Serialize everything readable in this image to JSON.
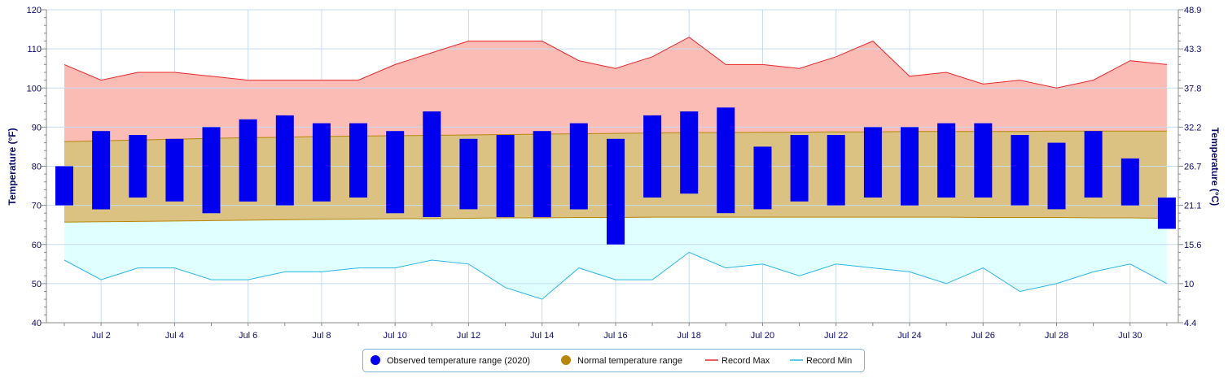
{
  "chart_data": {
    "type": "bar",
    "title": "",
    "x": [
      1,
      2,
      3,
      4,
      5,
      6,
      7,
      8,
      9,
      10,
      11,
      12,
      13,
      14,
      15,
      16,
      17,
      18,
      19,
      20,
      21,
      22,
      23,
      24,
      25,
      26,
      27,
      28,
      29,
      30,
      31
    ],
    "x_tick_labels": [
      "Jul 2",
      "Jul 4",
      "Jul 6",
      "Jul 8",
      "Jul 10",
      "Jul 12",
      "Jul 14",
      "Jul 16",
      "Jul 18",
      "Jul 20",
      "Jul 22",
      "Jul 24",
      "Jul 26",
      "Jul 28",
      "Jul 30"
    ],
    "x_tick_days": [
      2,
      4,
      6,
      8,
      10,
      12,
      14,
      16,
      18,
      20,
      22,
      24,
      26,
      28,
      30
    ],
    "ylabel_left": "Temperature (°F)",
    "ylabel_right": "Temperature (°C)",
    "ylim": [
      40,
      120
    ],
    "y_ticks_left": [
      40,
      50,
      60,
      70,
      80,
      90,
      100,
      110,
      120
    ],
    "y_ticks_right": [
      "4.4",
      "10",
      "15.6",
      "21.1",
      "26.7",
      "32.2",
      "37.8",
      "43.3",
      "48.9"
    ],
    "series": [
      {
        "name": "Observed temperature range (2020)",
        "type": "columnrange",
        "color": "#0000ee",
        "low": [
          70,
          69,
          72,
          71,
          68,
          71,
          70,
          71,
          72,
          68,
          67,
          69,
          67,
          67,
          69,
          60,
          72,
          73,
          68,
          69,
          71,
          70,
          72,
          70,
          72,
          72,
          70,
          69,
          72,
          70,
          64
        ],
        "high": [
          80,
          89,
          88,
          87,
          90,
          92,
          93,
          91,
          91,
          89,
          94,
          87,
          88,
          89,
          91,
          87,
          93,
          94,
          95,
          85,
          88,
          88,
          90,
          90,
          91,
          91,
          88,
          86,
          89,
          82,
          72
        ]
      },
      {
        "name": "Normal temperature range",
        "type": "arearange",
        "color": "#b8860b",
        "fill": "#dbc283",
        "low": [
          65.7,
          65.8,
          65.9,
          66.0,
          66.1,
          66.2,
          66.3,
          66.4,
          66.5,
          66.6,
          66.6,
          66.7,
          66.8,
          66.8,
          66.9,
          66.9,
          67.0,
          67.0,
          67.0,
          67.0,
          67.0,
          67.0,
          67.0,
          67.0,
          67.0,
          66.9,
          66.9,
          66.9,
          66.8,
          66.8,
          66.7
        ],
        "high": [
          86.3,
          86.5,
          86.7,
          86.9,
          87.1,
          87.3,
          87.4,
          87.6,
          87.7,
          87.8,
          87.9,
          88.0,
          88.1,
          88.2,
          88.3,
          88.4,
          88.5,
          88.6,
          88.6,
          88.7,
          88.7,
          88.8,
          88.8,
          88.9,
          88.9,
          88.9,
          88.9,
          89.0,
          89.0,
          89.0,
          89.0
        ]
      },
      {
        "name": "Record Max",
        "type": "line",
        "color": "#e8282b",
        "fill": "#fbbcb5",
        "values": [
          106,
          102,
          104,
          104,
          103,
          102,
          102,
          102,
          102,
          106,
          109,
          112,
          112,
          112,
          107,
          105,
          108,
          113,
          106,
          106,
          105,
          108,
          112,
          103,
          104,
          101,
          102,
          100,
          102,
          107,
          106
        ]
      },
      {
        "name": "Record Min",
        "type": "line",
        "color": "#2ab6e8",
        "fill": "#e0ffff",
        "values": [
          56,
          51,
          54,
          54,
          51,
          51,
          53,
          53,
          54,
          54,
          56,
          55,
          49,
          46,
          54,
          51,
          51,
          58,
          54,
          55,
          52,
          55,
          54,
          53,
          50,
          54,
          48,
          50,
          53,
          55,
          50
        ]
      }
    ],
    "legend": {
      "position": "bottom-center",
      "items": [
        {
          "label": "Observed temperature range (2020)",
          "color": "#0000ee",
          "marker": "circle"
        },
        {
          "label": "Normal temperature range",
          "color": "#b8860b",
          "marker": "circle"
        },
        {
          "label": "Record Max",
          "color": "#e8282b",
          "marker": "line"
        },
        {
          "label": "Record Min",
          "color": "#2ab6e8",
          "marker": "line"
        }
      ]
    }
  }
}
